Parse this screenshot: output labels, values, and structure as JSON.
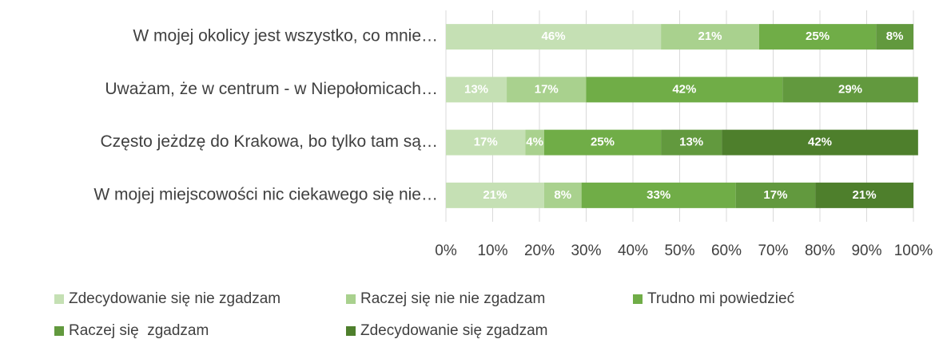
{
  "chart_data": {
    "type": "stacked-bar-horizontal",
    "categories": [
      "W mojej okolicy jest wszystko, co mnie…",
      "Uważam, że w centrum - w Niepołomicach…",
      "Często jeżdzę do Krakowa, bo tylko tam są…",
      "W mojej miejscowości nic ciekawego się nie…"
    ],
    "series": [
      {
        "name": "Zdecydowanie się nie zgadzam",
        "color": "#c5e0b4",
        "values": [
          46,
          13,
          17,
          21
        ],
        "value_labels": [
          "46%",
          "13%",
          "17%",
          "21%"
        ]
      },
      {
        "name": "Raczej się nie nie zgadzam",
        "color": "#a9d18e",
        "values": [
          21,
          17,
          4,
          8
        ],
        "value_labels": [
          "21%",
          "17%",
          "4%",
          "8%"
        ]
      },
      {
        "name": "Trudno mi powiedzieć",
        "color": "#70ad47",
        "values": [
          25,
          42,
          25,
          33
        ],
        "value_labels": [
          "25%",
          "42%",
          "25%",
          "33%"
        ]
      },
      {
        "name": "Raczej się  zgadzam",
        "color": "#62993e",
        "values": [
          8,
          29,
          13,
          17
        ],
        "value_labels": [
          "8%",
          "29%",
          "13%",
          "17%"
        ]
      },
      {
        "name": "Zdecydowanie się zgadzam",
        "color": "#4e7f2c",
        "values": [
          0,
          0,
          42,
          21
        ],
        "value_labels": [
          null,
          null,
          "42%",
          "21%"
        ]
      }
    ],
    "xlim": [
      0,
      100
    ],
    "xticks": [
      {
        "value": 0,
        "label": "0%"
      },
      {
        "value": 10,
        "label": "10%"
      },
      {
        "value": 20,
        "label": "20%"
      },
      {
        "value": 30,
        "label": "30%"
      },
      {
        "value": 40,
        "label": "40%"
      },
      {
        "value": 50,
        "label": "50%"
      },
      {
        "value": 60,
        "label": "60%"
      },
      {
        "value": 70,
        "label": "70%"
      },
      {
        "value": 80,
        "label": "80%"
      },
      {
        "value": 90,
        "label": "90%"
      },
      {
        "value": 100,
        "label": "100%"
      }
    ],
    "grid": true,
    "legend": "bottom"
  }
}
